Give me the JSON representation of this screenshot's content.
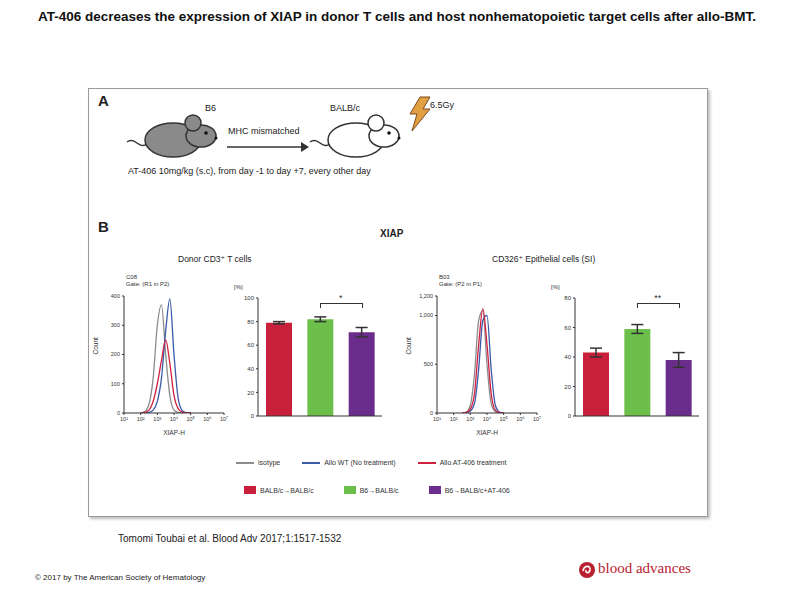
{
  "title": "AT-406 decreases the expression of XIAP in donor T cells and host nonhematopoietic target cells after allo-BMT.",
  "panel_a": {
    "label": "A",
    "donor": "B6",
    "link": "MHC mismatched",
    "recipient": "BALB/c",
    "irradiation": "6.5Gy",
    "treatment": "AT-406 10mg/kg (s.c), from day -1 to day +7, every other day"
  },
  "panel_b": {
    "label": "B",
    "title": "XIAP",
    "groups": [
      "Donor CD3⁺ T cells",
      "CD326⁺ Epithelial cells (SI)"
    ]
  },
  "chart_data": [
    {
      "type": "line",
      "annotations": [
        "C08",
        "Gate: (R1 in P2)"
      ],
      "x_label": "XIAP-H",
      "y_label": "Count",
      "log": "x",
      "xlim": [
        10,
        10000000
      ],
      "xticks": [
        {
          "value": 10,
          "label": "10¹"
        },
        {
          "value": 100,
          "label": "10²"
        },
        {
          "value": 1000,
          "label": "10³"
        },
        {
          "value": 10000,
          "label": "10⁴"
        },
        {
          "value": 100000,
          "label": "10⁵"
        },
        {
          "value": 1000000,
          "label": "10⁶"
        },
        {
          "value": 10000000,
          "label": "10⁷"
        }
      ],
      "ylim": [
        0,
        400
      ],
      "yticks": [
        0,
        100,
        200,
        300,
        400
      ],
      "x": [
        100,
        178,
        316,
        562,
        1000,
        1778,
        3162,
        5623,
        10000,
        17783,
        31623,
        56234,
        100000
      ],
      "series": [
        {
          "name": "isotype",
          "color": "#8c8c8c",
          "values": [
            0,
            5,
            30,
            120,
            300,
            370,
            200,
            60,
            10,
            2,
            0,
            0,
            0
          ]
        },
        {
          "name": "Allo WT (No treatment)",
          "color": "#3a5ba9",
          "values": [
            0,
            0,
            2,
            10,
            40,
            120,
            280,
            390,
            200,
            50,
            8,
            1,
            0
          ]
        },
        {
          "name": "Allo AT-406 treatment",
          "color": "#d0213f",
          "values": [
            0,
            2,
            10,
            40,
            100,
            180,
            250,
            170,
            60,
            15,
            3,
            0,
            0
          ]
        }
      ]
    },
    {
      "type": "bar",
      "y_label": "[%]",
      "categories": [
        "BALB/c→BALB/c",
        "B6→BALB/c",
        "B6→BALB/c+AT-406"
      ],
      "values": [
        79,
        82,
        71
      ],
      "errors": [
        1,
        2,
        4
      ],
      "colors": [
        "#c8203a",
        "#6cbf4a",
        "#6a2d8c"
      ],
      "ylim": [
        0,
        100
      ],
      "yticks": [
        0,
        20,
        40,
        60,
        80,
        100
      ],
      "tick_labels": "y",
      "significance": {
        "text": "*",
        "from": "B6→BALB/c",
        "to": "B6→BALB/c+AT-406"
      }
    },
    {
      "type": "line",
      "annotations": [
        "B03",
        "Gate: (P2 in P1)"
      ],
      "x_label": "XIAP-H",
      "y_label": "Count",
      "log": "x",
      "xlim": [
        10,
        10000000
      ],
      "xticks": [
        {
          "value": 10,
          "label": "10¹"
        },
        {
          "value": 100,
          "label": "10²"
        },
        {
          "value": 1000,
          "label": "10³"
        },
        {
          "value": 10000,
          "label": "10⁴"
        },
        {
          "value": 100000,
          "label": "10⁵"
        },
        {
          "value": 1000000,
          "label": "10⁶"
        },
        {
          "value": 10000000,
          "label": "10⁷"
        }
      ],
      "ylim": [
        0,
        1200
      ],
      "yticks": [
        0,
        500,
        {
          "value": 1000,
          "label": "1,000"
        },
        {
          "value": 1200,
          "label": "1,200"
        }
      ],
      "x": [
        316,
        562,
        1000,
        1778,
        3162,
        5623,
        10000,
        17783,
        31623,
        56234,
        100000
      ],
      "series": [
        {
          "name": "isotype",
          "color": "#8c8c8c",
          "values": [
            0,
            10,
            80,
            400,
            950,
            1050,
            500,
            100,
            15,
            0,
            0
          ]
        },
        {
          "name": "Allo WT (No treatment)",
          "color": "#3a5ba9",
          "values": [
            0,
            2,
            20,
            100,
            450,
            950,
            1000,
            450,
            80,
            10,
            0
          ]
        },
        {
          "name": "Allo AT-406 treatment",
          "color": "#d0213f",
          "values": [
            0,
            5,
            40,
            200,
            700,
            1070,
            700,
            200,
            30,
            5,
            0
          ]
        }
      ]
    },
    {
      "type": "bar",
      "y_label": "[%]",
      "categories": [
        "BALB/c→BALB/c",
        "B6→BALB/c",
        "B6→BALB/c+AT-406"
      ],
      "values": [
        43,
        59,
        38
      ],
      "errors": [
        3,
        3,
        5
      ],
      "colors": [
        "#c8203a",
        "#6cbf4a",
        "#6a2d8c"
      ],
      "ylim": [
        0,
        80
      ],
      "yticks": [
        0,
        20,
        40,
        60,
        80
      ],
      "tick_labels": "y",
      "significance": {
        "text": "**",
        "from": "B6→BALB/c",
        "to": "B6→BALB/c+AT-406"
      }
    }
  ],
  "citation": "Tomomi Toubai et al. Blood Adv 2017;1:1517-1532",
  "copyright": "© 2017 by The American Society of Hematology",
  "logo": "blood advances"
}
